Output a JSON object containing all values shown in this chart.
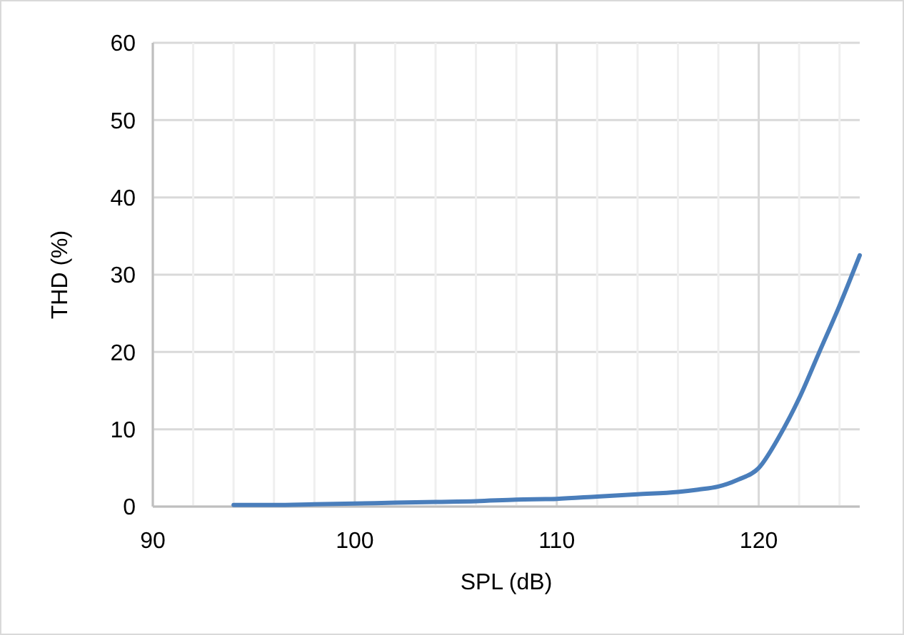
{
  "chart_data": {
    "type": "line",
    "xlabel": "SPL (dB)",
    "ylabel": "THD (%)",
    "x": [
      94,
      96,
      98,
      100,
      102,
      104,
      106,
      108,
      110,
      112,
      114,
      116,
      117,
      118,
      119,
      120,
      121,
      122,
      123,
      124,
      125
    ],
    "series": [
      {
        "color": "#4a7ebb",
        "values": [
          0.2,
          0.2,
          0.3,
          0.4,
          0.5,
          0.6,
          0.7,
          0.9,
          1.0,
          1.3,
          1.6,
          1.9,
          2.2,
          2.6,
          3.5,
          5,
          9,
          14,
          20,
          26,
          32.5
        ]
      }
    ],
    "xlim": [
      90,
      125
    ],
    "xticks": [
      90,
      {
        "value": 92,
        "label": null
      },
      {
        "value": 94,
        "label": null
      },
      {
        "value": 96,
        "label": null
      },
      {
        "value": 98,
        "label": null
      },
      100,
      {
        "value": 102,
        "label": null
      },
      {
        "value": 104,
        "label": null
      },
      {
        "value": 106,
        "label": null
      },
      {
        "value": 108,
        "label": null
      },
      110,
      {
        "value": 112,
        "label": null
      },
      {
        "value": 114,
        "label": null
      },
      {
        "value": 116,
        "label": null
      },
      {
        "value": 118,
        "label": null
      },
      120,
      {
        "value": 122,
        "label": null
      },
      {
        "value": 124,
        "label": null
      }
    ],
    "ylim": [
      0,
      60
    ],
    "yticks": [
      0,
      10,
      20,
      30,
      40,
      50,
      60
    ],
    "grid": true,
    "marker": "none",
    "line_style": "solid"
  }
}
